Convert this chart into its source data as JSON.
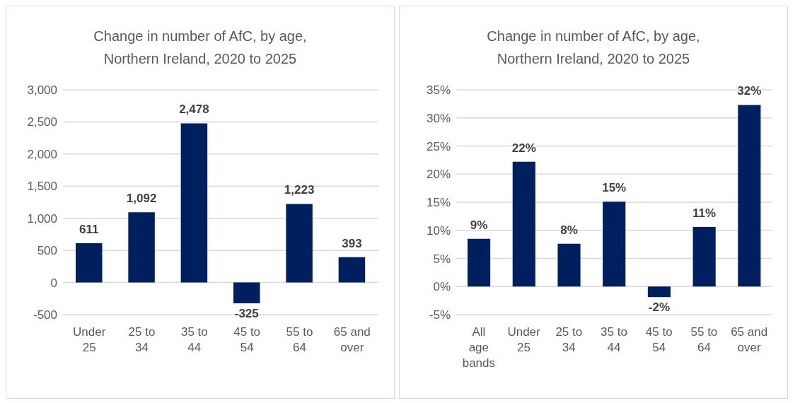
{
  "chart_data": [
    {
      "type": "bar",
      "title": "Change in number of AfC, by age, Northern Ireland, 2020 to 2025",
      "categories": [
        "Under 25",
        "25 to 34",
        "35 to 44",
        "45 to 54",
        "55 to 64",
        "65 and over"
      ],
      "values": [
        611,
        1092,
        2478,
        -325,
        1223,
        393
      ],
      "value_labels": [
        "611",
        "1,092",
        "2,478",
        "-325",
        "1,223",
        "393"
      ],
      "color": "#001f5f",
      "ylim": [
        -500,
        3000
      ],
      "yticks": [
        {
          "value": -500,
          "label": "-500"
        },
        0,
        {
          "value": 500,
          "label": "500"
        },
        {
          "value": 1000,
          "label": "1,000"
        },
        {
          "value": 1500,
          "label": "1,500"
        },
        {
          "value": 2000,
          "label": "2,000"
        },
        {
          "value": 2500,
          "label": "2,500"
        },
        {
          "value": 3000,
          "label": "3,000"
        }
      ],
      "grid": "y"
    },
    {
      "type": "bar",
      "title": "Change in number of AfC, by age, Northern Ireland, 2020 to 2025",
      "categories": [
        "All age bands",
        "Under 25",
        "25 to 34",
        "35 to 44",
        "45 to 54",
        "55 to 64",
        "65 and over"
      ],
      "values": [
        8.5,
        22.2,
        7.6,
        15.1,
        -1.9,
        10.6,
        32.3
      ],
      "value_labels": [
        "9%",
        "22%",
        "8%",
        "15%",
        "-2%",
        "11%",
        "32%"
      ],
      "color": "#001f5f",
      "ylim": [
        -5,
        35
      ],
      "yticks": [
        {
          "value": -5,
          "label": "-5%"
        },
        {
          "value": 0,
          "label": "0%"
        },
        {
          "value": 5,
          "label": "5%"
        },
        {
          "value": 10,
          "label": "10%"
        },
        {
          "value": 15,
          "label": "15%"
        },
        {
          "value": 20,
          "label": "20%"
        },
        {
          "value": 25,
          "label": "25%"
        },
        {
          "value": 30,
          "label": "30%"
        },
        {
          "value": 35,
          "label": "35%"
        }
      ],
      "grid": "y"
    }
  ]
}
